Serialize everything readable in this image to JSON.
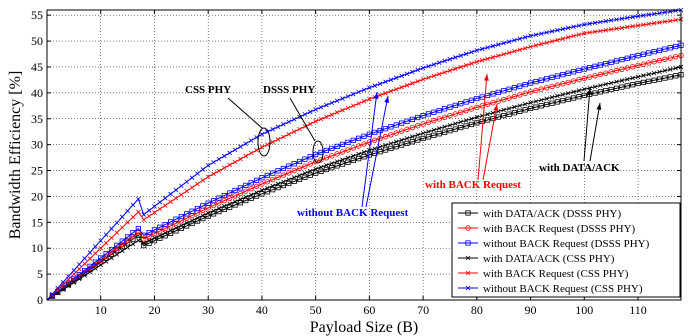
{
  "chart_data": {
    "type": "line",
    "xlabel": "Payload Size (B)",
    "ylabel": "Bandwidth Efficiency  [%]",
    "xlim": [
      0,
      118
    ],
    "ylim": [
      0,
      56
    ],
    "xticks": [
      10,
      20,
      30,
      40,
      50,
      60,
      70,
      80,
      90,
      100,
      110
    ],
    "yticks": [
      0,
      5,
      10,
      15,
      20,
      25,
      30,
      35,
      40,
      45,
      50,
      55
    ],
    "grid": true,
    "legend_position": "bottom-right",
    "series": [
      {
        "name": "with DATA/ACK (DSSS PHY)",
        "color": "#000000",
        "marker": "square",
        "x": [
          0,
          17,
          18,
          30,
          40,
          50,
          60,
          70,
          80,
          90,
          100,
          110,
          118
        ],
        "y": [
          0,
          12.5,
          10.5,
          16.2,
          20.5,
          24.5,
          28.0,
          31.2,
          34.2,
          37.0,
          39.5,
          41.8,
          43.5
        ]
      },
      {
        "name": "with BACK Request (DSSS PHY)",
        "color": "#ff0000",
        "marker": "circle",
        "x": [
          0,
          17,
          18,
          30,
          40,
          50,
          60,
          70,
          80,
          90,
          100,
          110,
          118
        ],
        "y": [
          0,
          13.0,
          11.8,
          17.8,
          22.4,
          26.7,
          30.5,
          34.0,
          37.2,
          40.2,
          42.8,
          45.3,
          47.2
        ]
      },
      {
        "name": "without BACK Request (DSSS PHY)",
        "color": "#0000ff",
        "marker": "square",
        "x": [
          0,
          17,
          18,
          30,
          40,
          50,
          60,
          70,
          80,
          90,
          100,
          110,
          118
        ],
        "y": [
          0,
          13.8,
          12.5,
          18.7,
          23.6,
          28.1,
          32.0,
          35.6,
          38.9,
          41.9,
          44.6,
          47.2,
          49.2
        ]
      },
      {
        "name": "with DATA/ACK (CSS PHY)",
        "color": "#000000",
        "marker": "x",
        "x": [
          0,
          17,
          18,
          30,
          40,
          50,
          60,
          70,
          80,
          90,
          100,
          110,
          118
        ],
        "y": [
          0,
          11.5,
          11.0,
          16.8,
          21.2,
          25.3,
          28.9,
          32.2,
          35.3,
          38.1,
          40.7,
          43.1,
          45.0
        ]
      },
      {
        "name": "with BACK Request (CSS PHY)",
        "color": "#ff0000",
        "marker": "x",
        "x": [
          0,
          17,
          18,
          30,
          40,
          50,
          60,
          70,
          80,
          90,
          100,
          110,
          118
        ],
        "y": [
          0,
          17.0,
          15.5,
          23.8,
          29.5,
          34.5,
          38.8,
          42.6,
          46.0,
          48.9,
          51.5,
          53.0,
          54.2
        ]
      },
      {
        "name": "without BACK Request (CSS PHY)",
        "color": "#0000ff",
        "marker": "x",
        "x": [
          0,
          17,
          18,
          30,
          40,
          50,
          60,
          70,
          80,
          90,
          100,
          110,
          118
        ],
        "y": [
          0,
          19.5,
          16.5,
          26.0,
          32.0,
          36.8,
          41.0,
          44.8,
          48.2,
          51.0,
          53.2,
          54.8,
          56.0
        ]
      }
    ],
    "annotations": [
      {
        "text": "CSS PHY",
        "color": "#000000"
      },
      {
        "text": "DSSS PHY",
        "color": "#000000"
      },
      {
        "text": "without BACK Request",
        "color": "#0000ff"
      },
      {
        "text": "with BACK Request",
        "color": "#ff0000"
      },
      {
        "text": "with DATA/ACK",
        "color": "#000000"
      }
    ]
  }
}
